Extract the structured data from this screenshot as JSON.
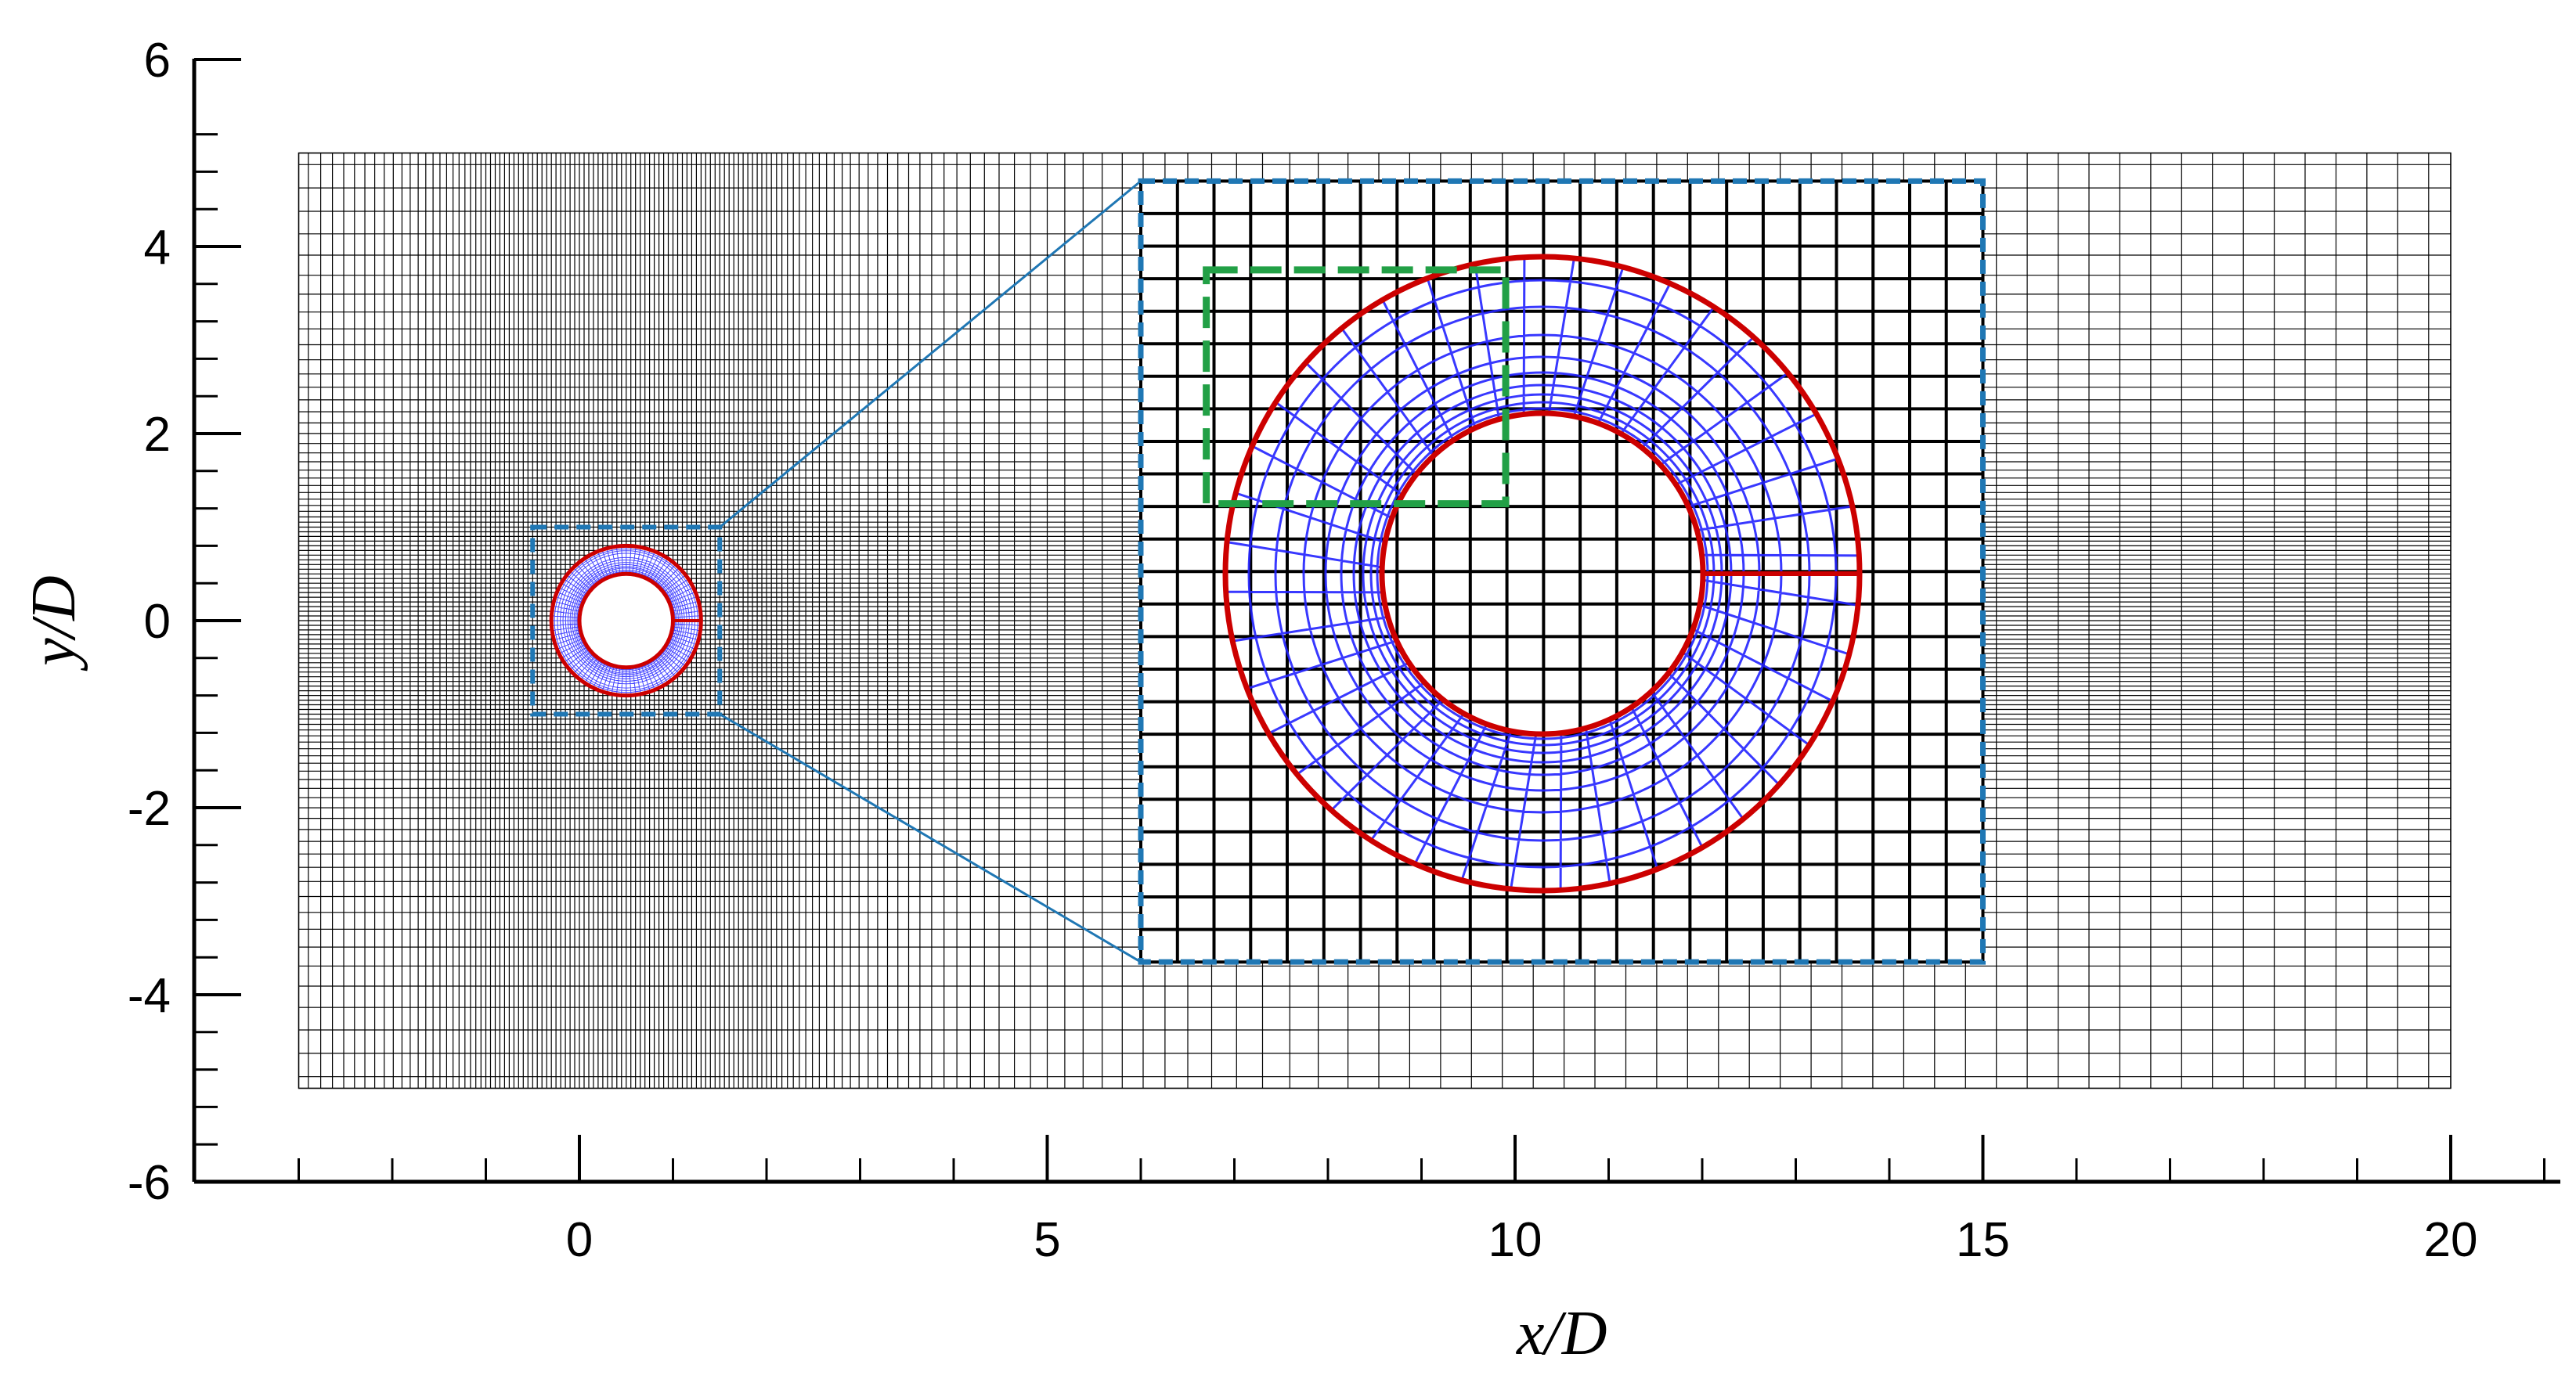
{
  "chart_data": {
    "type": "diagram",
    "xlabel": "x/D",
    "ylabel": "y/D",
    "xlim": [
      -4.1,
      21.1
    ],
    "ylim": [
      -6,
      6
    ],
    "x_ticks": [
      0,
      5,
      10,
      15,
      20
    ],
    "x_tick_labels": [
      "0",
      "5",
      "10",
      "15",
      "20"
    ],
    "y_ticks": [
      6,
      4,
      2,
      0,
      -2,
      -4,
      -6
    ],
    "y_tick_labels": [
      "6",
      "4",
      "2",
      "0",
      "-2",
      "-4",
      "-6"
    ],
    "background_mesh": {
      "x_range": [
        -3,
        20
      ],
      "y_range": [
        -5,
        5
      ],
      "fine_region_x": [
        -1,
        2
      ],
      "fine_region_y": [
        -1,
        1
      ]
    },
    "body": {
      "center": [
        0.5,
        0
      ],
      "inner_radius": 0.5,
      "outer_radius": 0.8
    },
    "zoom_source_box": {
      "x": [
        -0.5,
        1.5
      ],
      "y": [
        -1,
        1
      ]
    },
    "zoom_inset_box": {
      "x": [
        6,
        15
      ],
      "y": [
        -3.65,
        4.7
      ]
    },
    "highlight_box": {
      "x": [
        6.7,
        9.9
      ],
      "y": [
        1.25,
        3.75
      ]
    },
    "colors": {
      "background_mesh": "#000000",
      "overset_mesh": "#2222ff",
      "overset_boundary": "#cc0000",
      "zoom_box": "#1f77b4",
      "highlight_box": "#22a046"
    }
  }
}
